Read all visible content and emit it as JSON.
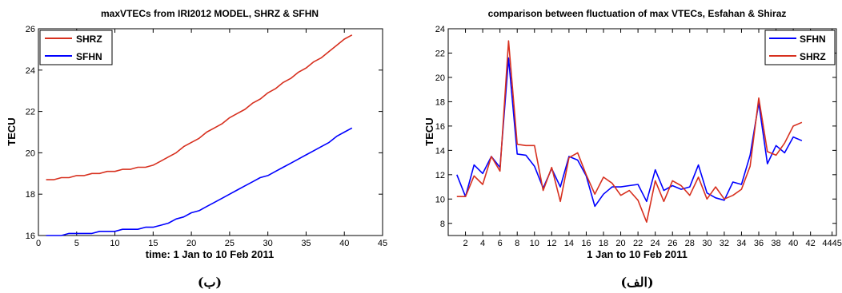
{
  "colors": {
    "SHRZ": "#d7301f",
    "SFHN": "#0000ff"
  },
  "panels": [
    {
      "caption": "(ب)",
      "chart_data": {
        "type": "line",
        "title": "maxVTECs from IRI2012 MODEL, SHRZ & SFHN",
        "xlabel": "time: 1 Jan to 10 Feb 2011",
        "ylabel": "TECU",
        "xlim": [
          0,
          45
        ],
        "ylim": [
          16,
          26
        ],
        "xticks": [
          "0",
          "5",
          "10",
          "15",
          "20",
          "25",
          "30",
          "35",
          "40",
          "45"
        ],
        "yticks": [
          "16",
          "18",
          "20",
          "22",
          "24",
          "26"
        ],
        "legend": "top-left",
        "grid": false,
        "x": [
          1,
          2,
          3,
          4,
          5,
          6,
          7,
          8,
          9,
          10,
          11,
          12,
          13,
          14,
          15,
          16,
          17,
          18,
          19,
          20,
          21,
          22,
          23,
          24,
          25,
          26,
          27,
          28,
          29,
          30,
          31,
          32,
          33,
          34,
          35,
          36,
          37,
          38,
          39,
          40,
          41
        ],
        "series": [
          {
            "name": "SHRZ",
            "color": "#d7301f",
            "values": [
              18.7,
              18.7,
              18.8,
              18.8,
              18.9,
              18.9,
              19.0,
              19.0,
              19.1,
              19.1,
              19.2,
              19.2,
              19.3,
              19.3,
              19.4,
              19.6,
              19.8,
              20.0,
              20.3,
              20.5,
              20.7,
              21.0,
              21.2,
              21.4,
              21.7,
              21.9,
              22.1,
              22.4,
              22.6,
              22.9,
              23.1,
              23.4,
              23.6,
              23.9,
              24.1,
              24.4,
              24.6,
              24.9,
              25.2,
              25.5,
              25.7
            ]
          },
          {
            "name": "SFHN",
            "color": "#0000ff",
            "values": [
              16.0,
              16.0,
              16.0,
              16.1,
              16.1,
              16.1,
              16.1,
              16.2,
              16.2,
              16.2,
              16.3,
              16.3,
              16.3,
              16.4,
              16.4,
              16.5,
              16.6,
              16.8,
              16.9,
              17.1,
              17.2,
              17.4,
              17.6,
              17.8,
              18.0,
              18.2,
              18.4,
              18.6,
              18.8,
              18.9,
              19.1,
              19.3,
              19.5,
              19.7,
              19.9,
              20.1,
              20.3,
              20.5,
              20.8,
              21.0,
              21.2
            ]
          }
        ]
      }
    },
    {
      "caption": "(الف)",
      "chart_data": {
        "type": "line",
        "title": "comparison between fluctuation of max VTECs, Esfahan & Shiraz",
        "xlabel": "1 Jan to 10 Feb 2011",
        "ylabel": "TECU",
        "xlim": [
          0,
          45
        ],
        "ylim": [
          7,
          24
        ],
        "xticks": [
          "2",
          "4",
          "6",
          "8",
          "10",
          "12",
          "14",
          "16",
          "18",
          "20",
          "22",
          "24",
          "26",
          "28",
          "30",
          "32",
          "34",
          "36",
          "38",
          "40",
          "42",
          "4445"
        ],
        "yticks": [
          "8",
          "10",
          "12",
          "14",
          "16",
          "18",
          "20",
          "22",
          "24"
        ],
        "legend": "top-right",
        "grid": false,
        "x": [
          1,
          2,
          3,
          4,
          5,
          6,
          7,
          8,
          9,
          10,
          11,
          12,
          13,
          14,
          15,
          16,
          17,
          18,
          19,
          20,
          21,
          22,
          23,
          24,
          25,
          26,
          27,
          28,
          29,
          30,
          31,
          32,
          33,
          34,
          35,
          36,
          37,
          38,
          39,
          40,
          41
        ],
        "series": [
          {
            "name": "SFHN",
            "color": "#0000ff",
            "values": [
              12.0,
              10.2,
              12.8,
              12.1,
              13.5,
              12.6,
              21.6,
              13.7,
              13.6,
              12.7,
              10.9,
              12.5,
              11.0,
              13.5,
              13.2,
              11.9,
              9.4,
              10.4,
              11.0,
              11.0,
              11.1,
              11.2,
              9.8,
              12.4,
              10.7,
              11.1,
              10.8,
              11.0,
              12.8,
              10.5,
              10.1,
              9.9,
              11.4,
              11.2,
              13.6,
              17.9,
              12.9,
              14.4,
              13.8,
              15.1,
              14.8
            ]
          },
          {
            "name": "SHRZ",
            "color": "#d7301f",
            "values": [
              10.2,
              10.2,
              11.9,
              11.2,
              13.5,
              12.3,
              23.0,
              14.5,
              14.4,
              14.4,
              10.7,
              12.6,
              9.8,
              13.4,
              13.8,
              12.0,
              10.4,
              11.8,
              11.3,
              10.3,
              10.7,
              9.9,
              8.1,
              11.5,
              9.8,
              11.5,
              11.1,
              10.3,
              11.8,
              10.0,
              11.0,
              10.0,
              10.3,
              10.8,
              12.7,
              18.3,
              13.9,
              13.6,
              14.6,
              16.0,
              16.3
            ]
          }
        ]
      }
    }
  ]
}
